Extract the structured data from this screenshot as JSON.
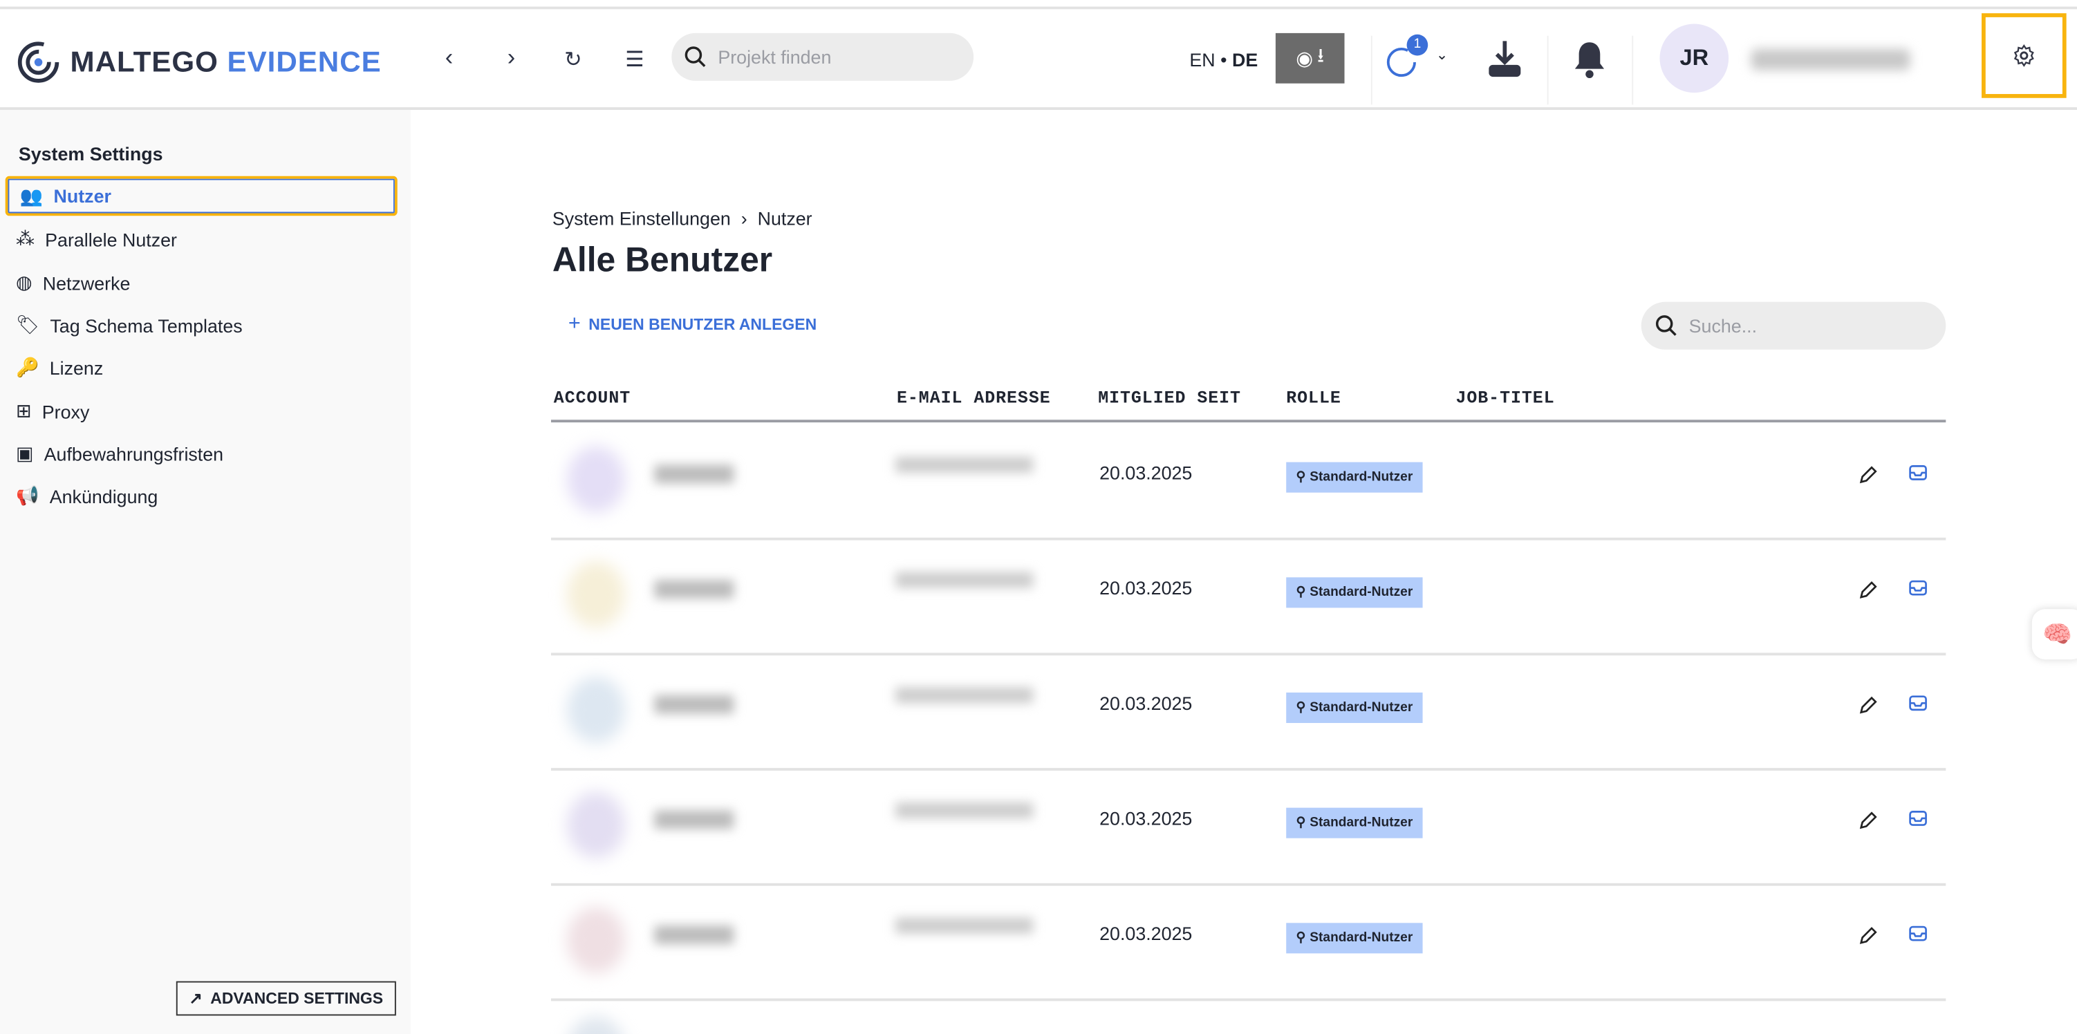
{
  "header": {
    "brand_a": "MALTEGO",
    "brand_b": "EVIDENCE",
    "search_placeholder": "Projekt finden",
    "lang_en": "EN",
    "lang_dot": "•",
    "lang_de": "DE",
    "tasks_badge": "1",
    "avatar_initials": "JR"
  },
  "sidebar": {
    "title": "System Settings",
    "items": [
      {
        "label": "Nutzer",
        "icon": "users-icon"
      },
      {
        "label": "Parallele Nutzer",
        "icon": "network-users-icon"
      },
      {
        "label": "Netzwerke",
        "icon": "globe-icon"
      },
      {
        "label": "Tag Schema Templates",
        "icon": "tags-icon"
      },
      {
        "label": "Lizenz",
        "icon": "key-icon"
      },
      {
        "label": "Proxy",
        "icon": "sitemap-icon"
      },
      {
        "label": "Aufbewahrungsfristen",
        "icon": "calendar-x-icon"
      },
      {
        "label": "Ankündigung",
        "icon": "megaphone-icon"
      }
    ],
    "advanced": "ADVANCED SETTINGS"
  },
  "main": {
    "breadcrumb": [
      "System Einstellungen",
      "Nutzer"
    ],
    "title": "Alle Benutzer",
    "new_user": "NEUEN BENUTZER ANLEGEN",
    "search_placeholder": "Suche...",
    "columns": [
      "ACCOUNT",
      "E-MAIL ADRESSE",
      "MITGLIED SEIT",
      "ROLLE",
      "JOB-TITEL"
    ],
    "rows": [
      {
        "date": "20.03.2025",
        "role": "Standard-Nutzer"
      },
      {
        "date": "20.03.2025",
        "role": "Standard-Nutzer"
      },
      {
        "date": "20.03.2025",
        "role": "Standard-Nutzer"
      },
      {
        "date": "20.03.2025",
        "role": "Standard-Nutzer"
      },
      {
        "date": "20.03.2025",
        "role": "Standard-Nutzer"
      }
    ]
  },
  "colors": {
    "accent": "#3b6fd8",
    "highlight": "#f8b40e",
    "role_bg": "#b3cdfb"
  }
}
